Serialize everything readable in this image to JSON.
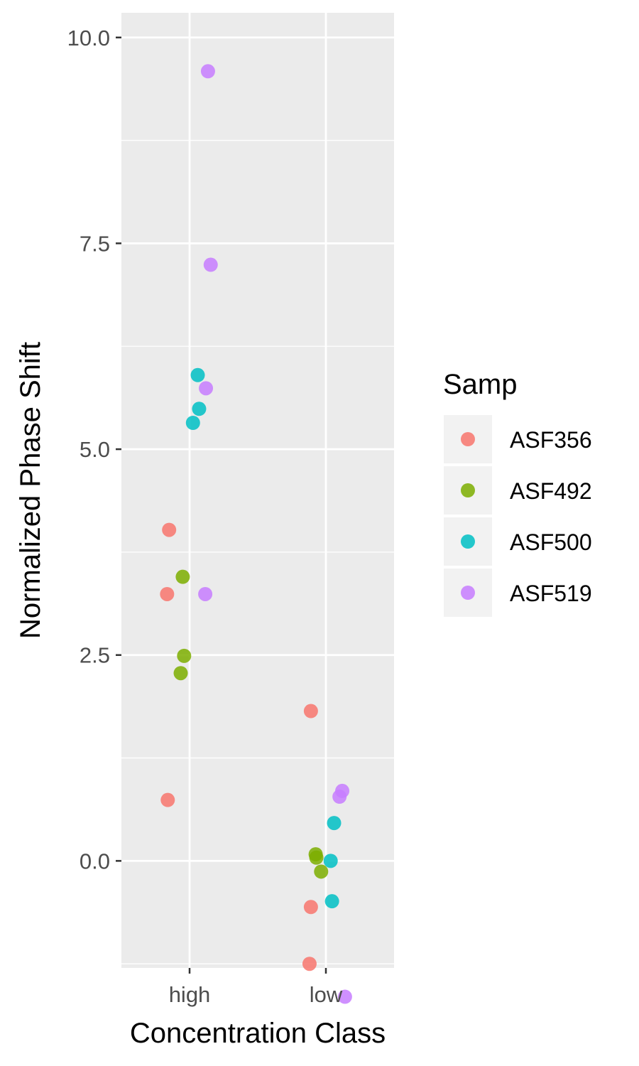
{
  "chart_data": {
    "type": "scatter",
    "xlabel": "Concentration Class",
    "ylabel": "Normalized Phase Shift",
    "categories": [
      "high",
      "low"
    ],
    "ylim": [
      -1.3,
      10.3
    ],
    "yticks": [
      {
        "value": 0.0,
        "label": "0.0"
      },
      {
        "value": 2.5,
        "label": "2.5"
      },
      {
        "value": 5.0,
        "label": "5.0"
      },
      {
        "value": 7.5,
        "label": "7.5"
      },
      {
        "value": 10.0,
        "label": "10.0"
      }
    ],
    "grid": true,
    "legend": {
      "title": "Samp",
      "placement": "right"
    },
    "series": [
      {
        "name": "ASF356",
        "color": "#F8766D",
        "points": [
          {
            "x": "high",
            "jitter": -0.3,
            "y": 4.02
          },
          {
            "x": "high",
            "jitter": -0.33,
            "y": 3.24
          },
          {
            "x": "high",
            "jitter": -0.32,
            "y": 0.74
          },
          {
            "x": "low",
            "jitter": -0.22,
            "y": 1.82
          },
          {
            "x": "low",
            "jitter": -0.22,
            "y": -0.56
          },
          {
            "x": "low",
            "jitter": -0.24,
            "y": -1.25
          }
        ]
      },
      {
        "name": "ASF492",
        "color": "#7CAE00",
        "points": [
          {
            "x": "high",
            "jitter": -0.1,
            "y": 3.45
          },
          {
            "x": "high",
            "jitter": -0.08,
            "y": 2.49
          },
          {
            "x": "high",
            "jitter": -0.13,
            "y": 2.28
          },
          {
            "x": "low",
            "jitter": -0.15,
            "y": 0.08
          },
          {
            "x": "low",
            "jitter": -0.14,
            "y": 0.04
          },
          {
            "x": "low",
            "jitter": -0.07,
            "y": -0.13
          }
        ]
      },
      {
        "name": "ASF500",
        "color": "#00BFC4",
        "points": [
          {
            "x": "high",
            "jitter": 0.12,
            "y": 5.9
          },
          {
            "x": "high",
            "jitter": 0.14,
            "y": 5.49
          },
          {
            "x": "high",
            "jitter": 0.05,
            "y": 5.32
          },
          {
            "x": "low",
            "jitter": 0.12,
            "y": 0.46
          },
          {
            "x": "low",
            "jitter": 0.07,
            "y": 0.0
          },
          {
            "x": "low",
            "jitter": 0.09,
            "y": -0.49
          }
        ]
      },
      {
        "name": "ASF519",
        "color": "#C77CFF",
        "points": [
          {
            "x": "high",
            "jitter": 0.27,
            "y": 9.59
          },
          {
            "x": "high",
            "jitter": 0.31,
            "y": 7.24
          },
          {
            "x": "high",
            "jitter": 0.24,
            "y": 5.74
          },
          {
            "x": "high",
            "jitter": 0.23,
            "y": 3.24
          },
          {
            "x": "low",
            "jitter": 0.24,
            "y": 0.85
          },
          {
            "x": "low",
            "jitter": 0.2,
            "y": 0.78
          },
          {
            "x": "low",
            "jitter": 0.28,
            "y": -1.65
          }
        ]
      }
    ]
  }
}
